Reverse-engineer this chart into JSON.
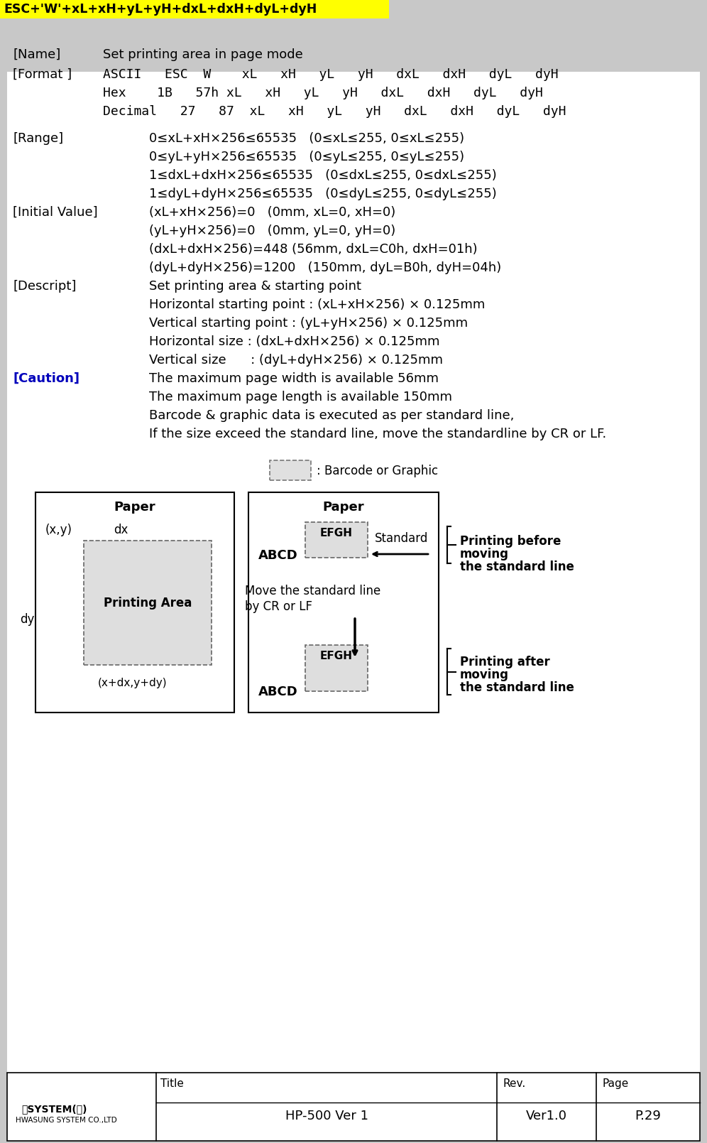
{
  "title_text": "ESC+'W'+xL+xH+yL+yH+dxL+dxH+dyL+dyH",
  "title_bg": "#FFFF00",
  "bg_color": "#C8C8C8",
  "content_bg": "#FFFFFF",
  "footer_product": "HP-500 Ver 1",
  "footer_ver": "Ver1.0",
  "footer_page_num": "P.29"
}
